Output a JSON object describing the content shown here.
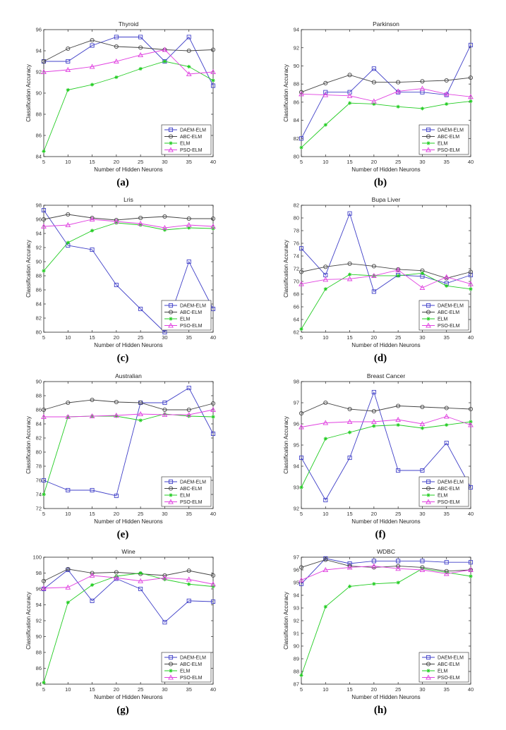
{
  "chart_data": [
    {
      "panel_label": "(a)",
      "type": "line",
      "title": "Thyroid",
      "xlabel": "Number of Hidden Neurons",
      "ylabel": "Classification Accuracy",
      "x": [
        5,
        10,
        15,
        20,
        25,
        30,
        35,
        40
      ],
      "xlim": [
        5,
        40
      ],
      "ylim": [
        84,
        96
      ],
      "xticks": [
        5,
        10,
        15,
        20,
        25,
        30,
        35,
        40
      ],
      "yticks": [
        84,
        86,
        88,
        90,
        92,
        94,
        96
      ],
      "legend_position": "bottom-right",
      "series": [
        {
          "name": "DAEM-ELM",
          "color": "#4040c8",
          "marker": "square",
          "values": [
            93.0,
            93.0,
            94.5,
            95.3,
            95.3,
            93.0,
            95.3,
            90.7
          ]
        },
        {
          "name": "ABC-ELM",
          "color": "#444444",
          "marker": "circle",
          "values": [
            93.0,
            94.2,
            95.0,
            94.4,
            94.3,
            94.1,
            94.0,
            94.1
          ]
        },
        {
          "name": "ELM",
          "color": "#22cc22",
          "marker": "star",
          "values": [
            84.5,
            90.3,
            90.8,
            91.5,
            92.3,
            93.0,
            92.5,
            91.2
          ]
        },
        {
          "name": "PSO-ELM",
          "color": "#e040e0",
          "marker": "triangle",
          "values": [
            92.0,
            92.2,
            92.5,
            93.0,
            93.6,
            94.1,
            91.8,
            92.0
          ]
        }
      ]
    },
    {
      "panel_label": "(b)",
      "type": "line",
      "title": "Parkinson",
      "xlabel": "Number of Hidden Neurons",
      "ylabel": "Classification Accuracy",
      "x": [
        5,
        10,
        15,
        20,
        25,
        30,
        35,
        40
      ],
      "xlim": [
        5,
        40
      ],
      "ylim": [
        80,
        94
      ],
      "xticks": [
        5,
        10,
        15,
        20,
        25,
        30,
        35,
        40
      ],
      "yticks": [
        80,
        82,
        84,
        86,
        88,
        90,
        92,
        94
      ],
      "legend_position": "bottom-right",
      "series": [
        {
          "name": "DAEM-ELM",
          "color": "#4040c8",
          "marker": "square",
          "values": [
            82.0,
            87.1,
            87.1,
            89.7,
            87.1,
            87.1,
            86.8,
            92.3
          ]
        },
        {
          "name": "ABC-ELM",
          "color": "#444444",
          "marker": "circle",
          "values": [
            87.1,
            88.1,
            89.0,
            88.2,
            88.2,
            88.3,
            88.4,
            88.7
          ]
        },
        {
          "name": "ELM",
          "color": "#22cc22",
          "marker": "star",
          "values": [
            81.0,
            83.5,
            85.9,
            85.8,
            85.5,
            85.3,
            85.8,
            86.1
          ]
        },
        {
          "name": "PSO-ELM",
          "color": "#e040e0",
          "marker": "triangle",
          "values": [
            86.9,
            86.8,
            86.7,
            86.1,
            87.2,
            87.5,
            86.9,
            86.6
          ]
        }
      ]
    },
    {
      "panel_label": "(c)",
      "type": "line",
      "title": "Lris",
      "xlabel": "Number of Hidden Neurons",
      "ylabel": "Classification Accuracy",
      "x": [
        5,
        10,
        15,
        20,
        25,
        30,
        35,
        40
      ],
      "xlim": [
        5,
        40
      ],
      "ylim": [
        80,
        98
      ],
      "xticks": [
        5,
        10,
        15,
        20,
        25,
        30,
        35,
        40
      ],
      "yticks": [
        80,
        82,
        84,
        86,
        88,
        90,
        92,
        94,
        96,
        98
      ],
      "legend_position": "bottom-right",
      "series": [
        {
          "name": "DAEM-ELM",
          "color": "#4040c8",
          "marker": "square",
          "values": [
            97.3,
            92.3,
            91.7,
            86.7,
            83.3,
            80.0,
            90.0,
            83.3
          ]
        },
        {
          "name": "ABC-ELM",
          "color": "#444444",
          "marker": "circle",
          "values": [
            96.0,
            96.7,
            96.2,
            95.9,
            96.2,
            96.4,
            96.1,
            96.1
          ]
        },
        {
          "name": "ELM",
          "color": "#22cc22",
          "marker": "star",
          "values": [
            88.7,
            92.7,
            94.4,
            95.5,
            95.2,
            94.5,
            94.8,
            94.7
          ]
        },
        {
          "name": "PSO-ELM",
          "color": "#e040e0",
          "marker": "triangle",
          "values": [
            95.0,
            95.2,
            96.0,
            95.7,
            95.4,
            94.8,
            95.2,
            95.0
          ]
        }
      ]
    },
    {
      "panel_label": "(d)",
      "type": "line",
      "title": "Bupa Liver",
      "xlabel": "Number of Hidden Neurons",
      "ylabel": "Classification Accuracy",
      "x": [
        5,
        10,
        15,
        20,
        25,
        30,
        35,
        40
      ],
      "xlim": [
        5,
        40
      ],
      "ylim": [
        62,
        82
      ],
      "xticks": [
        5,
        10,
        15,
        20,
        25,
        30,
        35,
        40
      ],
      "yticks": [
        62,
        64,
        66,
        68,
        70,
        72,
        74,
        76,
        78,
        80,
        82
      ],
      "legend_position": "bottom-right",
      "series": [
        {
          "name": "DAEM-ELM",
          "color": "#4040c8",
          "marker": "square",
          "values": [
            75.2,
            71.0,
            80.7,
            68.4,
            71.0,
            70.8,
            69.7,
            71.0
          ]
        },
        {
          "name": "ABC-ELM",
          "color": "#444444",
          "marker": "circle",
          "values": [
            71.5,
            72.3,
            72.8,
            72.4,
            71.9,
            71.7,
            70.5,
            71.5
          ]
        },
        {
          "name": "ELM",
          "color": "#22cc22",
          "marker": "star",
          "values": [
            62.5,
            68.8,
            71.1,
            70.9,
            70.9,
            71.3,
            69.3,
            68.8
          ]
        },
        {
          "name": "PSO-ELM",
          "color": "#e040e0",
          "marker": "triangle",
          "values": [
            69.6,
            70.3,
            70.4,
            70.9,
            71.8,
            69.0,
            70.7,
            69.6
          ]
        }
      ]
    },
    {
      "panel_label": "(e)",
      "type": "line",
      "title": "Australian",
      "xlabel": "Number of Hidden Neurons",
      "ylabel": "Classification Accuracy",
      "x": [
        5,
        10,
        15,
        20,
        25,
        30,
        35,
        40
      ],
      "xlim": [
        5,
        40
      ],
      "ylim": [
        72,
        90
      ],
      "xticks": [
        5,
        10,
        15,
        20,
        25,
        30,
        35,
        40
      ],
      "yticks": [
        72,
        74,
        76,
        78,
        80,
        82,
        84,
        86,
        88,
        90
      ],
      "legend_position": "bottom-right",
      "series": [
        {
          "name": "DAEM-ELM",
          "color": "#4040c8",
          "marker": "square",
          "values": [
            76.0,
            74.6,
            74.6,
            73.8,
            87.0,
            87.0,
            89.1,
            82.6
          ]
        },
        {
          "name": "ABC-ELM",
          "color": "#444444",
          "marker": "circle",
          "values": [
            86.0,
            87.0,
            87.4,
            87.1,
            87.0,
            86.0,
            86.0,
            86.9
          ]
        },
        {
          "name": "ELM",
          "color": "#22cc22",
          "marker": "star",
          "values": [
            74.0,
            85.0,
            85.1,
            85.1,
            84.5,
            85.4,
            85.1,
            85.0
          ]
        },
        {
          "name": "PSO-ELM",
          "color": "#e040e0",
          "marker": "triangle",
          "values": [
            85.0,
            85.0,
            85.1,
            85.2,
            85.4,
            85.3,
            85.3,
            86.0
          ]
        }
      ]
    },
    {
      "panel_label": "(f)",
      "type": "line",
      "title": "Breast Cancer",
      "xlabel": "Number of Hidden Neurons",
      "ylabel": "Classification Accuracy",
      "x": [
        5,
        10,
        15,
        20,
        25,
        30,
        35,
        40
      ],
      "xlim": [
        5,
        40
      ],
      "ylim": [
        92,
        98
      ],
      "xticks": [
        5,
        10,
        15,
        20,
        25,
        30,
        35,
        40
      ],
      "yticks": [
        92,
        93,
        94,
        95,
        96,
        97,
        98
      ],
      "legend_position": "bottom-right",
      "series": [
        {
          "name": "DAEM-ELM",
          "color": "#4040c8",
          "marker": "square",
          "values": [
            94.4,
            92.4,
            94.4,
            97.5,
            93.8,
            93.8,
            95.1,
            93.0
          ]
        },
        {
          "name": "ABC-ELM",
          "color": "#444444",
          "marker": "circle",
          "values": [
            96.5,
            97.0,
            96.7,
            96.6,
            96.85,
            96.8,
            96.75,
            96.7
          ]
        },
        {
          "name": "ELM",
          "color": "#22cc22",
          "marker": "star",
          "values": [
            93.0,
            95.3,
            95.6,
            95.9,
            95.95,
            95.8,
            95.95,
            96.1
          ]
        },
        {
          "name": "PSO-ELM",
          "color": "#e040e0",
          "marker": "triangle",
          "values": [
            95.85,
            96.05,
            96.1,
            96.1,
            96.2,
            96.0,
            96.35,
            95.95
          ]
        }
      ]
    },
    {
      "panel_label": "(g)",
      "type": "line",
      "title": "Wine",
      "xlabel": "Number of Hidden Neurons",
      "ylabel": "Classification Accuracy",
      "x": [
        5,
        10,
        15,
        20,
        25,
        30,
        35,
        40
      ],
      "xlim": [
        5,
        40
      ],
      "ylim": [
        84,
        100
      ],
      "xticks": [
        5,
        10,
        15,
        20,
        25,
        30,
        35,
        40
      ],
      "yticks": [
        84,
        86,
        88,
        90,
        92,
        94,
        96,
        98,
        100
      ],
      "legend_position": "bottom-right",
      "series": [
        {
          "name": "DAEM-ELM",
          "color": "#4040c8",
          "marker": "square",
          "values": [
            96.0,
            98.4,
            94.5,
            97.3,
            96.0,
            91.8,
            94.5,
            94.4
          ]
        },
        {
          "name": "ABC-ELM",
          "color": "#444444",
          "marker": "circle",
          "values": [
            97.0,
            98.5,
            98.0,
            98.1,
            97.9,
            97.7,
            98.3,
            97.7
          ]
        },
        {
          "name": "ELM",
          "color": "#22cc22",
          "marker": "star",
          "values": [
            84.2,
            94.3,
            96.5,
            97.6,
            98.0,
            97.2,
            96.6,
            96.3
          ]
        },
        {
          "name": "PSO-ELM",
          "color": "#e040e0",
          "marker": "triangle",
          "values": [
            96.1,
            96.2,
            97.7,
            97.4,
            97.0,
            97.4,
            97.2,
            96.6
          ]
        }
      ]
    },
    {
      "panel_label": "(h)",
      "type": "line",
      "title": "WDBC",
      "xlabel": "Number of Hidden Neurons",
      "ylabel": "Classification Accuracy",
      "x": [
        5,
        10,
        15,
        20,
        25,
        30,
        35,
        40
      ],
      "xlim": [
        5,
        40
      ],
      "ylim": [
        87,
        97
      ],
      "xticks": [
        5,
        10,
        15,
        20,
        25,
        30,
        35,
        40
      ],
      "yticks": [
        87,
        88,
        89,
        90,
        91,
        92,
        93,
        94,
        95,
        96,
        97
      ],
      "legend_position": "bottom-right",
      "series": [
        {
          "name": "DAEM-ELM",
          "color": "#4040c8",
          "marker": "square",
          "values": [
            94.9,
            96.9,
            96.5,
            96.7,
            96.7,
            96.7,
            96.6,
            96.6
          ]
        },
        {
          "name": "ABC-ELM",
          "color": "#444444",
          "marker": "circle",
          "values": [
            96.2,
            96.8,
            96.3,
            96.2,
            96.3,
            96.2,
            95.9,
            96.0
          ]
        },
        {
          "name": "ELM",
          "color": "#22cc22",
          "marker": "star",
          "values": [
            87.7,
            93.1,
            94.7,
            94.9,
            95.0,
            96.1,
            95.8,
            95.5
          ]
        },
        {
          "name": "PSO-ELM",
          "color": "#e040e0",
          "marker": "triangle",
          "values": [
            95.2,
            96.0,
            96.2,
            96.3,
            96.1,
            96.0,
            95.7,
            96.0
          ]
        }
      ]
    }
  ]
}
